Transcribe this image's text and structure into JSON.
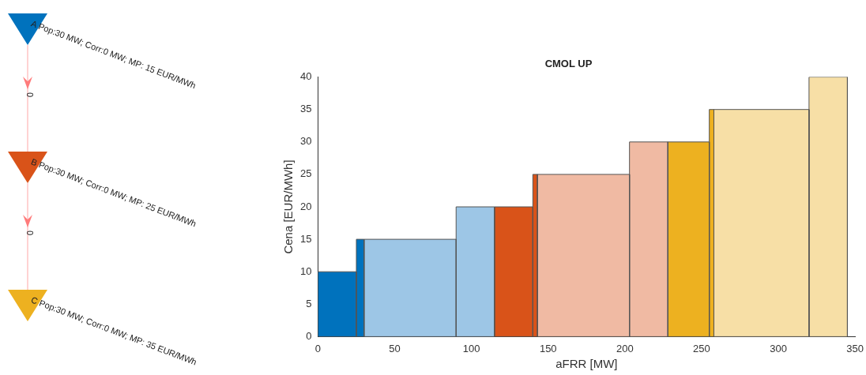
{
  "chart_data": {
    "type": "histogram",
    "title": "CMOL UP",
    "xlabel": "aFRR [MW]",
    "ylabel": "Cena [EUR/MWh]",
    "bins": [
      0,
      25,
      30,
      90,
      115,
      140,
      143,
      203,
      228,
      255,
      258,
      320,
      345
    ],
    "values": [
      10,
      15,
      15,
      20,
      20,
      25,
      25,
      30,
      30,
      35,
      35,
      40
    ],
    "colors": [
      "#0072bd",
      "#0072bd",
      "#9dc6e6",
      "#9dc6e6",
      "#d95319",
      "#d95319",
      "#f0baa3",
      "#f0baa3",
      "#edb120",
      "#edb120",
      "#f7dfa6",
      "#f7dfa6"
    ],
    "xlim": [
      0,
      350
    ],
    "xticks": [
      0,
      50,
      100,
      150,
      200,
      250,
      300,
      350
    ],
    "ylim": [
      0,
      40
    ],
    "yticks": [
      0,
      5,
      10,
      15,
      20,
      25,
      30,
      35,
      40
    ],
    "annotations": [
      "A Pop:30 MW; Corr:0 MW; MP: 15 EUR/MWh",
      "0",
      "B Pop:30 MW; Corr:0 MW; MP: 25 EUR/MWh",
      "0",
      "C Pop:30 MW; Corr:0 MW; MP: 35 EUR/MWh"
    ]
  }
}
